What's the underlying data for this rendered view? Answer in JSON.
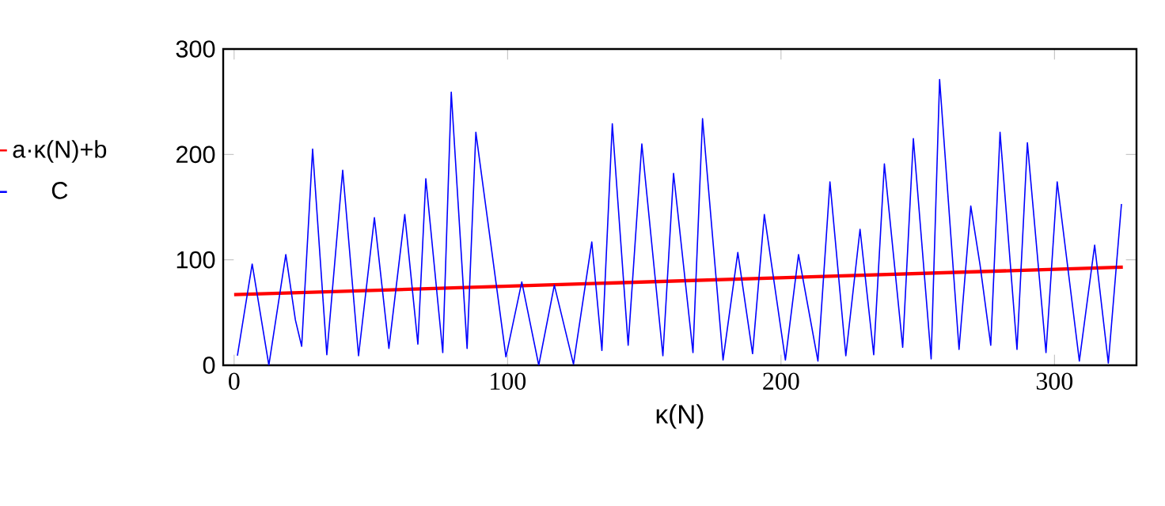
{
  "chart_data": {
    "type": "line",
    "xlabel": "κ(N)",
    "xlim": [
      -4,
      330
    ],
    "ylim": [
      0,
      300
    ],
    "xticks": [
      0,
      100,
      200,
      300
    ],
    "yticks": [
      0,
      100,
      200,
      300
    ],
    "legend": "left",
    "grid": false,
    "marker": "none",
    "line_style": "solid",
    "series": [
      {
        "name": "a·κ(N)+b",
        "color": "#ff0000",
        "x": [
          0,
          325
        ],
        "values": [
          67,
          93
        ]
      },
      {
        "name": "C",
        "color": "#0000ff",
        "x": [
          1.2,
          6.6,
          12.7,
          18.9,
          22.4,
          24.7,
          28.7,
          33.9,
          39.7,
          45.5,
          51.3,
          56.6,
          62.4,
          67.2,
          70.1,
          76.3,
          79.4,
          85.2,
          88.4,
          99.4,
          105.2,
          111.4,
          117.1,
          124.1,
          130.8,
          134.5,
          138.3,
          144.1,
          149.1,
          156.8,
          160.7,
          167.8,
          171.3,
          178.8,
          184.2,
          189.6,
          193.9,
          201.6,
          206.4,
          213.5,
          217.9,
          223.7,
          228.9,
          233.9,
          237.8,
          244.5,
          248.4,
          254.9,
          258.0,
          265.1,
          269.4,
          272.8,
          276.7,
          280.1,
          286.3,
          290.1,
          296.9,
          301.0,
          309.1,
          314.7,
          319.7,
          324.5
        ],
        "values": [
          9,
          96,
          0,
          105,
          43,
          18,
          205,
          10,
          185,
          9,
          140,
          16,
          143,
          20,
          177,
          12,
          259,
          16,
          221,
          8,
          79,
          0,
          76,
          1,
          117,
          14,
          229,
          19,
          210,
          9,
          182,
          12,
          234,
          5,
          107,
          11,
          143,
          5,
          105,
          4,
          174,
          9,
          129,
          10,
          191,
          17,
          215,
          6,
          271,
          15,
          151,
          95,
          19,
          221,
          15,
          211,
          12,
          174,
          4,
          114,
          2,
          153
        ]
      }
    ]
  }
}
